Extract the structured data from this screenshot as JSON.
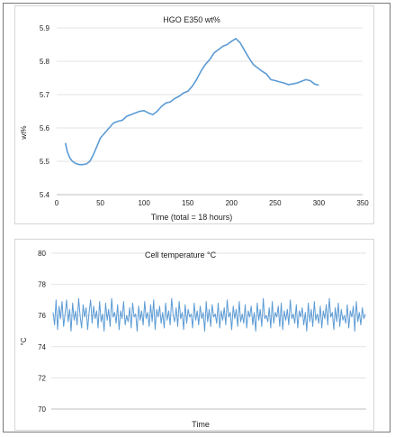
{
  "chart_data": [
    {
      "type": "line",
      "title": "HGO E350 wt%",
      "xlabel": "Time (total = 18 hours)",
      "ylabel": "wt%",
      "xlim": [
        0,
        350
      ],
      "ylim": [
        5.4,
        5.9
      ],
      "x_ticks": [
        "0",
        "50",
        "100",
        "150",
        "200",
        "250",
        "300",
        "350"
      ],
      "y_ticks": [
        "5.4",
        "5.5",
        "5.6",
        "5.7",
        "5.8",
        "5.9"
      ],
      "grid": true,
      "legend": "none",
      "line_color": "#5b9bd5",
      "series": [
        {
          "x": [
            10,
            12,
            15,
            18,
            22,
            26,
            30,
            34,
            38,
            42,
            46,
            50,
            55,
            60,
            65,
            70,
            75,
            80,
            85,
            90,
            95,
            100,
            105,
            110,
            115,
            120,
            125,
            130,
            135,
            140,
            145,
            150,
            155,
            160,
            165,
            170,
            175,
            180,
            185,
            190,
            195,
            200,
            205,
            210,
            215,
            220,
            225,
            230,
            235,
            240,
            245,
            250,
            255,
            260,
            265,
            270,
            275,
            280,
            285,
            290,
            295,
            300
          ],
          "y": [
            5.555,
            5.53,
            5.51,
            5.5,
            5.493,
            5.49,
            5.49,
            5.492,
            5.5,
            5.52,
            5.545,
            5.57,
            5.585,
            5.6,
            5.615,
            5.62,
            5.623,
            5.635,
            5.64,
            5.645,
            5.65,
            5.652,
            5.645,
            5.64,
            5.65,
            5.665,
            5.675,
            5.678,
            5.688,
            5.695,
            5.705,
            5.71,
            5.725,
            5.745,
            5.77,
            5.79,
            5.805,
            5.825,
            5.835,
            5.845,
            5.85,
            5.86,
            5.868,
            5.855,
            5.832,
            5.81,
            5.79,
            5.78,
            5.77,
            5.762,
            5.745,
            5.742,
            5.738,
            5.735,
            5.73,
            5.732,
            5.735,
            5.74,
            5.745,
            5.742,
            5.732,
            5.728
          ]
        }
      ]
    },
    {
      "type": "line",
      "title": "Cell temperature °C",
      "xlabel": "Time",
      "ylabel": "°C",
      "ylim": [
        70,
        80
      ],
      "y_ticks": [
        "70",
        "72",
        "74",
        "76",
        "78",
        "80"
      ],
      "grid": true,
      "legend": "none",
      "line_color": "#5b9bd5",
      "series": [
        {
          "y": [
            76.2,
            75.4,
            77.0,
            75.1,
            76.6,
            75.8,
            76.9,
            75.3,
            76.1,
            77.0,
            75.6,
            76.4,
            75.0,
            76.8,
            75.7,
            76.3,
            75.4,
            77.1,
            76.0,
            75.2,
            76.7,
            75.9,
            76.5,
            75.1,
            76.2,
            77.0,
            75.5,
            76.6,
            75.8,
            76.3,
            75.2,
            76.9,
            75.6,
            76.1,
            75.0,
            76.8,
            75.7,
            76.4,
            75.3,
            77.1,
            75.9,
            76.2,
            75.5,
            76.7,
            75.1,
            76.3,
            75.8,
            76.9,
            75.4,
            76.0,
            75.6,
            76.5,
            75.2,
            76.8,
            75.9,
            76.1,
            75.0,
            76.6,
            75.7,
            76.3,
            75.4,
            76.9,
            75.8,
            76.2,
            75.3,
            76.7,
            75.6,
            77.0,
            75.1,
            76.4,
            75.9,
            76.6,
            75.5,
            76.2,
            75.2,
            76.8,
            75.7,
            76.3,
            75.4,
            77.1,
            76.0,
            75.6,
            76.5,
            75.3,
            76.9,
            75.8,
            76.2,
            75.1,
            76.7,
            75.5,
            76.4,
            75.9,
            76.1,
            75.2,
            76.8,
            75.7,
            76.3,
            75.4,
            76.6,
            75.8,
            76.2,
            75.0,
            76.9,
            75.6,
            76.4,
            75.3,
            76.7,
            75.9,
            76.1,
            75.5,
            76.8,
            75.2,
            76.3,
            75.7,
            76.5,
            75.4,
            77.0,
            75.9,
            76.2,
            75.1,
            76.6,
            75.8,
            76.4,
            75.3,
            76.9,
            75.6,
            76.1,
            75.5,
            76.7,
            75.2,
            76.3,
            75.9,
            76.6,
            75.4,
            76.2,
            75.0,
            76.8,
            75.7,
            76.4,
            75.3,
            77.1,
            75.8,
            76.0,
            75.6,
            76.5,
            75.2,
            76.9,
            75.5,
            76.2,
            75.9,
            76.6,
            75.3,
            76.8,
            75.1,
            76.3,
            75.7,
            76.4,
            75.4,
            77.0,
            75.8,
            76.1,
            75.5,
            76.7,
            75.2,
            76.3,
            75.9,
            76.5,
            75.4,
            76.2,
            75.0,
            76.8,
            75.6,
            76.4,
            75.3,
            76.9,
            75.7,
            76.1,
            75.5,
            76.6,
            75.2,
            76.3,
            75.8,
            76.7,
            75.4,
            77.1,
            75.9,
            76.2,
            75.1,
            76.5,
            75.6,
            76.8,
            75.3,
            76.4,
            75.7,
            76.0,
            75.5,
            76.7,
            75.2,
            76.3,
            75.9,
            76.6,
            75.0,
            76.9,
            75.6,
            76.2,
            75.4,
            76.5,
            75.8,
            76.1
          ]
        }
      ]
    }
  ]
}
